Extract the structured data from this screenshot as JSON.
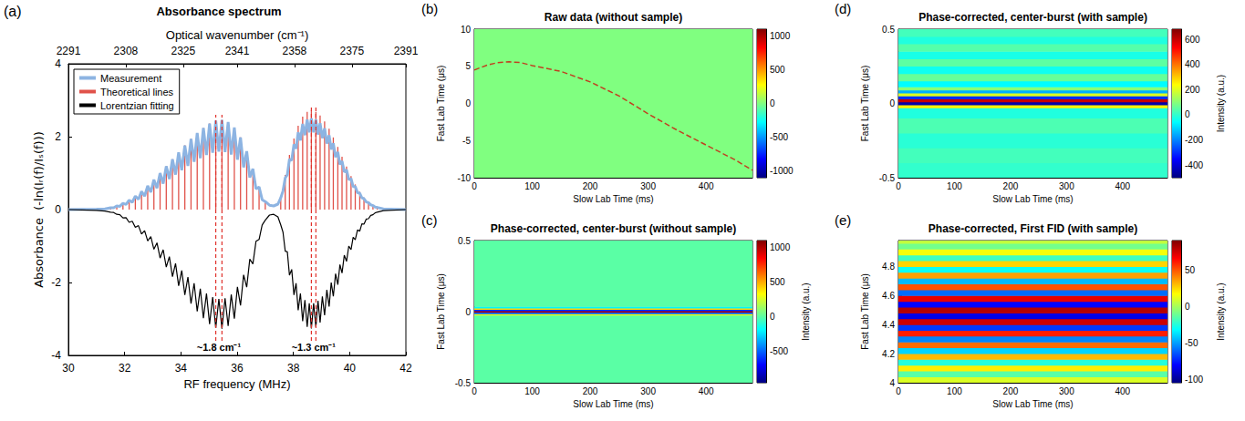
{
  "chart_data": [
    {
      "panel": "(a)",
      "type": "line",
      "title": "Absorbance spectrum",
      "x_label": "RF frequency (MHz)",
      "x2_label": "Optical wavenumber (cm⁻¹)",
      "y_label": "Absorbance  (-ln(Iᵣ(f)/Iₛ(f)))",
      "xlim": [
        30,
        42
      ],
      "xticks": [
        30,
        32,
        34,
        36,
        38,
        40,
        42
      ],
      "x2lim": [
        2291,
        2391
      ],
      "x2ticks": [
        2291,
        2308,
        2325,
        2341,
        2358,
        2375,
        2391
      ],
      "ylim": [
        -4,
        4
      ],
      "yticks": [
        -4,
        -2,
        0,
        2,
        4
      ],
      "grid": false,
      "legend": "upper left",
      "series": [
        {
          "name": "Measurement",
          "type": "line",
          "color": "#8db4e2",
          "x": [
            30,
            31,
            31.3,
            31.5,
            31.61,
            31.72,
            31.83,
            31.94,
            32.05,
            32.16,
            32.27,
            32.38,
            32.49,
            32.6,
            32.71,
            32.82,
            32.93,
            33.04,
            33.15,
            33.26,
            33.37,
            33.48,
            33.59,
            33.7,
            33.81,
            33.92,
            34.03,
            34.14,
            34.25,
            34.36,
            34.47,
            34.58,
            34.69,
            34.8,
            34.91,
            35.02,
            35.13,
            35.24,
            35.35,
            35.46,
            35.57,
            35.68,
            35.79,
            35.9,
            36.01,
            36.12,
            36.23,
            36.34,
            36.45,
            36.56,
            36.67,
            36.78,
            36.89,
            37.0,
            37.15,
            37.3,
            37.45,
            37.55,
            37.63,
            37.71,
            37.785,
            37.86,
            37.94,
            38.02,
            38.095,
            38.17,
            38.25,
            38.33,
            38.41,
            38.49,
            38.565,
            38.64,
            38.72,
            38.8,
            38.875,
            38.95,
            39.03,
            39.11,
            39.19,
            39.27,
            39.345,
            39.42,
            39.5,
            39.58,
            39.655,
            39.73,
            39.81,
            39.89,
            39.97,
            40.05,
            40.125,
            40.2,
            40.28,
            40.36,
            40.435,
            40.51,
            40.59,
            40.67,
            40.75,
            40.83,
            40.905,
            40.98,
            41.2,
            42
          ],
          "values": [
            0,
            0.01,
            0.02,
            0.05,
            0.05,
            0.1,
            0.09,
            0.17,
            0.14,
            0.26,
            0.2,
            0.37,
            0.28,
            0.5,
            0.37,
            0.65,
            0.48,
            0.82,
            0.59,
            1.0,
            0.71,
            1.19,
            0.84,
            1.38,
            0.96,
            1.57,
            1.08,
            1.76,
            1.2,
            1.94,
            1.31,
            2.1,
            1.41,
            2.24,
            1.5,
            2.36,
            1.56,
            2.44,
            1.59,
            2.46,
            1.58,
            2.4,
            1.51,
            2.25,
            1.37,
            1.98,
            1.16,
            1.6,
            0.88,
            1.12,
            0.57,
            0.62,
            0.27,
            0.22,
            0.12,
            0.1,
            0.15,
            0.32,
            0.51,
            0.87,
            0.96,
            1.38,
            1.35,
            1.79,
            1.67,
            2.12,
            1.9,
            2.35,
            2.04,
            2.47,
            2.12,
            2.5,
            2.12,
            2.47,
            2.06,
            2.37,
            1.96,
            2.23,
            1.81,
            2.04,
            1.65,
            1.82,
            1.44,
            1.58,
            1.24,
            1.33,
            1.03,
            1.09,
            0.82,
            0.85,
            0.63,
            0.63,
            0.46,
            0.45,
            0.32,
            0.3,
            0.21,
            0.19,
            0.13,
            0.11,
            0.07,
            0.06,
            0.02,
            0
          ]
        },
        {
          "name": "Theoretical lines",
          "type": "stem",
          "color": "#e0524a",
          "x": [
            31.5,
            31.72,
            31.94,
            32.16,
            32.38,
            32.6,
            32.82,
            33.04,
            33.26,
            33.48,
            33.7,
            33.92,
            34.14,
            34.36,
            34.58,
            34.8,
            35.02,
            35.24,
            35.46,
            35.68,
            35.9,
            36.12,
            36.34,
            36.56,
            36.78,
            37.0,
            37.55,
            37.71,
            37.86,
            38.02,
            38.17,
            38.33,
            38.49,
            38.64,
            38.8,
            38.95,
            39.11,
            39.27,
            39.42,
            39.58,
            39.73,
            39.89,
            40.05,
            40.2,
            40.36,
            40.51,
            40.67,
            40.83,
            40.98
          ],
          "values": [
            0.05,
            0.1,
            0.17,
            0.26,
            0.37,
            0.5,
            0.65,
            0.82,
            1.0,
            1.19,
            1.38,
            1.57,
            1.76,
            1.94,
            2.1,
            2.24,
            2.36,
            2.44,
            2.46,
            2.4,
            2.25,
            1.98,
            1.6,
            1.12,
            0.62,
            0.22,
            0.35,
            0.95,
            1.5,
            1.95,
            2.3,
            2.55,
            2.68,
            2.72,
            2.68,
            2.58,
            2.42,
            2.22,
            1.98,
            1.72,
            1.45,
            1.18,
            0.92,
            0.69,
            0.49,
            0.33,
            0.21,
            0.12,
            0.06
          ]
        },
        {
          "name": "Lorentzian fitting",
          "type": "line",
          "color": "#000000",
          "x": [
            30,
            31,
            31.3,
            31.5,
            31.61,
            31.72,
            31.83,
            31.94,
            32.05,
            32.16,
            32.27,
            32.38,
            32.49,
            32.6,
            32.71,
            32.82,
            32.93,
            33.04,
            33.15,
            33.26,
            33.37,
            33.48,
            33.59,
            33.7,
            33.81,
            33.92,
            34.03,
            34.14,
            34.25,
            34.36,
            34.47,
            34.58,
            34.69,
            34.8,
            34.91,
            35.02,
            35.13,
            35.24,
            35.35,
            35.46,
            35.57,
            35.68,
            35.79,
            35.9,
            36.01,
            36.12,
            36.23,
            36.34,
            36.45,
            36.56,
            36.67,
            36.78,
            36.89,
            37.0,
            37.15,
            37.3,
            37.45,
            37.55,
            37.63,
            37.71,
            37.785,
            37.86,
            37.94,
            38.02,
            38.095,
            38.17,
            38.25,
            38.33,
            38.41,
            38.49,
            38.565,
            38.64,
            38.72,
            38.8,
            38.875,
            38.95,
            39.03,
            39.11,
            39.19,
            39.27,
            39.345,
            39.42,
            39.5,
            39.58,
            39.655,
            39.73,
            39.81,
            39.89,
            39.97,
            40.05,
            40.125,
            40.2,
            40.28,
            40.36,
            40.435,
            40.51,
            40.59,
            40.67,
            40.75,
            40.83,
            40.905,
            40.98,
            41.2,
            42
          ],
          "values": [
            0,
            -0.02,
            -0.04,
            -0.07,
            -0.08,
            -0.13,
            -0.14,
            -0.23,
            -0.22,
            -0.35,
            -0.32,
            -0.49,
            -0.44,
            -0.67,
            -0.58,
            -0.86,
            -0.74,
            -1.09,
            -0.91,
            -1.33,
            -1.1,
            -1.58,
            -1.29,
            -1.84,
            -1.48,
            -2.09,
            -1.67,
            -2.34,
            -1.85,
            -2.58,
            -2.02,
            -2.79,
            -2.17,
            -2.98,
            -2.3,
            -3.14,
            -2.4,
            -3.25,
            -2.45,
            -3.27,
            -2.43,
            -3.19,
            -2.33,
            -2.99,
            -2.12,
            -2.63,
            -1.79,
            -2.13,
            -1.36,
            -1.49,
            -0.87,
            -0.82,
            -0.42,
            -0.29,
            -0.15,
            -0.13,
            -0.2,
            -0.42,
            -0.62,
            -1.14,
            -1.16,
            -1.8,
            -1.64,
            -2.34,
            -2.02,
            -2.76,
            -2.3,
            -3.06,
            -2.48,
            -3.22,
            -2.57,
            -3.26,
            -2.57,
            -3.22,
            -2.5,
            -3.1,
            -2.38,
            -2.9,
            -2.2,
            -2.66,
            -2.0,
            -2.38,
            -1.76,
            -2.06,
            -1.51,
            -1.74,
            -1.25,
            -1.42,
            -1.0,
            -1.1,
            -0.76,
            -0.83,
            -0.56,
            -0.59,
            -0.39,
            -0.4,
            -0.26,
            -0.25,
            -0.16,
            -0.14,
            -0.09,
            -0.07,
            -0.03,
            0
          ]
        }
      ],
      "annotations": [
        {
          "text": "~1.8 cm⁻¹",
          "x": [
            35.24,
            35.46
          ],
          "y": [
            -3.6,
            2.6
          ]
        },
        {
          "text": "~1.3 cm⁻¹",
          "x": [
            38.64,
            38.8
          ],
          "y": [
            -3.6,
            2.8
          ]
        }
      ]
    },
    {
      "panel": "(b)",
      "type": "heatmap",
      "title": "Raw data (without sample)",
      "x_label": "Slow Lab Time (ms)",
      "y_label": "Fast Lab Time (μs)",
      "xlim": [
        0,
        480
      ],
      "xticks": [
        0,
        100,
        200,
        300,
        400
      ],
      "ylim": [
        -10,
        10
      ],
      "yticks": [
        -10,
        -5,
        0,
        5,
        10
      ],
      "grid": false,
      "bands": [
        {
          "from": -10,
          "to": 10,
          "intensity": 0
        }
      ],
      "trace": {
        "color": "#c04020",
        "slow_time": [
          0,
          20,
          40,
          60,
          80,
          100,
          150,
          200,
          250,
          300,
          350,
          400,
          450,
          480
        ],
        "fast_time": [
          4.5,
          5.1,
          5.5,
          5.6,
          5.5,
          5.1,
          4.3,
          2.9,
          1.0,
          -1.4,
          -3.6,
          -5.6,
          -7.6,
          -9.0
        ]
      },
      "colorbar": {
        "lim": [
          -1100,
          1100
        ],
        "ticks": [
          -1000,
          -500,
          0,
          500,
          1000
        ]
      }
    },
    {
      "panel": "(c)",
      "type": "heatmap",
      "title": "Phase-corrected, center-burst (without sample)",
      "x_label": "Slow Lab Time (ms)",
      "y_label": "Fast Lab Time (μs)",
      "xlim": [
        0,
        480
      ],
      "xticks": [
        0,
        100,
        200,
        300,
        400
      ],
      "ylim": [
        -0.5,
        0.5
      ],
      "yticks": [
        -0.5,
        0,
        0.5
      ],
      "grid": false,
      "bands": [
        {
          "from": -0.5,
          "to": -0.025,
          "intensity": 0
        },
        {
          "from": -0.025,
          "to": -0.015,
          "intensity": 300
        },
        {
          "from": -0.015,
          "to": -0.005,
          "intensity": -500
        },
        {
          "from": -0.005,
          "to": 0.005,
          "intensity": 1000
        },
        {
          "from": 0.005,
          "to": 0.015,
          "intensity": -600
        },
        {
          "from": 0.015,
          "to": 0.025,
          "intensity": 400
        },
        {
          "from": 0.025,
          "to": 0.035,
          "intensity": -200
        },
        {
          "from": 0.035,
          "to": 0.5,
          "intensity": 0
        }
      ],
      "colorbar": {
        "lim": [
          -950,
          1100
        ],
        "ticks": [
          -500,
          0,
          500,
          1000
        ],
        "label": "Intensity (a.u.)"
      }
    },
    {
      "panel": "(d)",
      "type": "heatmap",
      "title": "Phase-corrected, center-burst (with sample)",
      "x_label": "Slow Lab Time (ms)",
      "y_label": "Fast Lab Time (μs)",
      "xlim": [
        0,
        480
      ],
      "xticks": [
        0,
        100,
        200,
        300,
        400
      ],
      "ylim": [
        -0.5,
        0.5
      ],
      "yticks": [
        -0.5,
        0,
        0.5
      ],
      "grid": false,
      "bands": [
        {
          "from": -0.5,
          "to": -0.4,
          "intensity": 0
        },
        {
          "from": -0.4,
          "to": -0.3,
          "intensity": 20
        },
        {
          "from": -0.3,
          "to": -0.2,
          "intensity": -10
        },
        {
          "from": -0.2,
          "to": -0.1,
          "intensity": 30
        },
        {
          "from": -0.1,
          "to": -0.03,
          "intensity": -20
        },
        {
          "from": -0.03,
          "to": -0.01,
          "intensity": 250
        },
        {
          "from": -0.01,
          "to": 0.01,
          "intensity": -450
        },
        {
          "from": 0.01,
          "to": 0.03,
          "intensity": 600
        },
        {
          "from": 0.03,
          "to": 0.05,
          "intensity": -300
        },
        {
          "from": 0.05,
          "to": 0.07,
          "intensity": 200
        },
        {
          "from": 0.07,
          "to": 0.09,
          "intensity": -150
        },
        {
          "from": 0.09,
          "to": 0.11,
          "intensity": 100
        },
        {
          "from": 0.11,
          "to": 0.15,
          "intensity": -60
        },
        {
          "from": 0.15,
          "to": 0.2,
          "intensity": 60
        },
        {
          "from": 0.2,
          "to": 0.25,
          "intensity": -40
        },
        {
          "from": 0.25,
          "to": 0.3,
          "intensity": 50
        },
        {
          "from": 0.3,
          "to": 0.35,
          "intensity": -30
        },
        {
          "from": 0.35,
          "to": 0.4,
          "intensity": 40
        },
        {
          "from": 0.4,
          "to": 0.45,
          "intensity": -20
        },
        {
          "from": 0.45,
          "to": 0.5,
          "intensity": 20
        }
      ],
      "colorbar": {
        "lim": [
          -500,
          680
        ],
        "ticks": [
          -400,
          -200,
          0,
          200,
          400,
          600
        ],
        "label": "Intensity (a.u.)"
      }
    },
    {
      "panel": "(e)",
      "type": "heatmap",
      "title": "Phase-corrected, First FID (with sample)",
      "x_label": "Slow Lab Time (ms)",
      "y_label": "Fast Lab Time (μs)",
      "xlim": [
        0,
        480
      ],
      "xticks": [
        0,
        100,
        200,
        300,
        400
      ],
      "ylim": [
        4,
        4.98
      ],
      "yticks": [
        4,
        4.2,
        4.4,
        4.6,
        4.8
      ],
      "grid": false,
      "bands": [
        {
          "from": 4.0,
          "to": 4.04,
          "intensity": 10
        },
        {
          "from": 4.04,
          "to": 4.08,
          "intensity": -15
        },
        {
          "from": 4.08,
          "to": 4.12,
          "intensity": 20
        },
        {
          "from": 4.12,
          "to": 4.16,
          "intensity": -25
        },
        {
          "from": 4.16,
          "to": 4.2,
          "intensity": 30
        },
        {
          "from": 4.2,
          "to": 4.24,
          "intensity": -40
        },
        {
          "from": 4.24,
          "to": 4.28,
          "intensity": 45
        },
        {
          "from": 4.28,
          "to": 4.32,
          "intensity": -55
        },
        {
          "from": 4.32,
          "to": 4.36,
          "intensity": 60
        },
        {
          "from": 4.36,
          "to": 4.4,
          "intensity": -70
        },
        {
          "from": 4.4,
          "to": 4.44,
          "intensity": 75
        },
        {
          "from": 4.44,
          "to": 4.48,
          "intensity": -85
        },
        {
          "from": 4.48,
          "to": 4.52,
          "intensity": 80
        },
        {
          "from": 4.52,
          "to": 4.56,
          "intensity": -80
        },
        {
          "from": 4.56,
          "to": 4.6,
          "intensity": 70
        },
        {
          "from": 4.6,
          "to": 4.64,
          "intensity": -60
        },
        {
          "from": 4.64,
          "to": 4.68,
          "intensity": 50
        },
        {
          "from": 4.68,
          "to": 4.72,
          "intensity": -45
        },
        {
          "from": 4.72,
          "to": 4.76,
          "intensity": 35
        },
        {
          "from": 4.76,
          "to": 4.8,
          "intensity": -30
        },
        {
          "from": 4.8,
          "to": 4.84,
          "intensity": 25
        },
        {
          "from": 4.84,
          "to": 4.88,
          "intensity": -20
        },
        {
          "from": 4.88,
          "to": 4.92,
          "intensity": 15
        },
        {
          "from": 4.92,
          "to": 4.96,
          "intensity": -10
        },
        {
          "from": 4.96,
          "to": 4.98,
          "intensity": 5
        }
      ],
      "colorbar": {
        "lim": [
          -105,
          90
        ],
        "ticks": [
          -100,
          -50,
          0,
          50
        ],
        "label": "Intensity (a.u.)"
      }
    }
  ]
}
